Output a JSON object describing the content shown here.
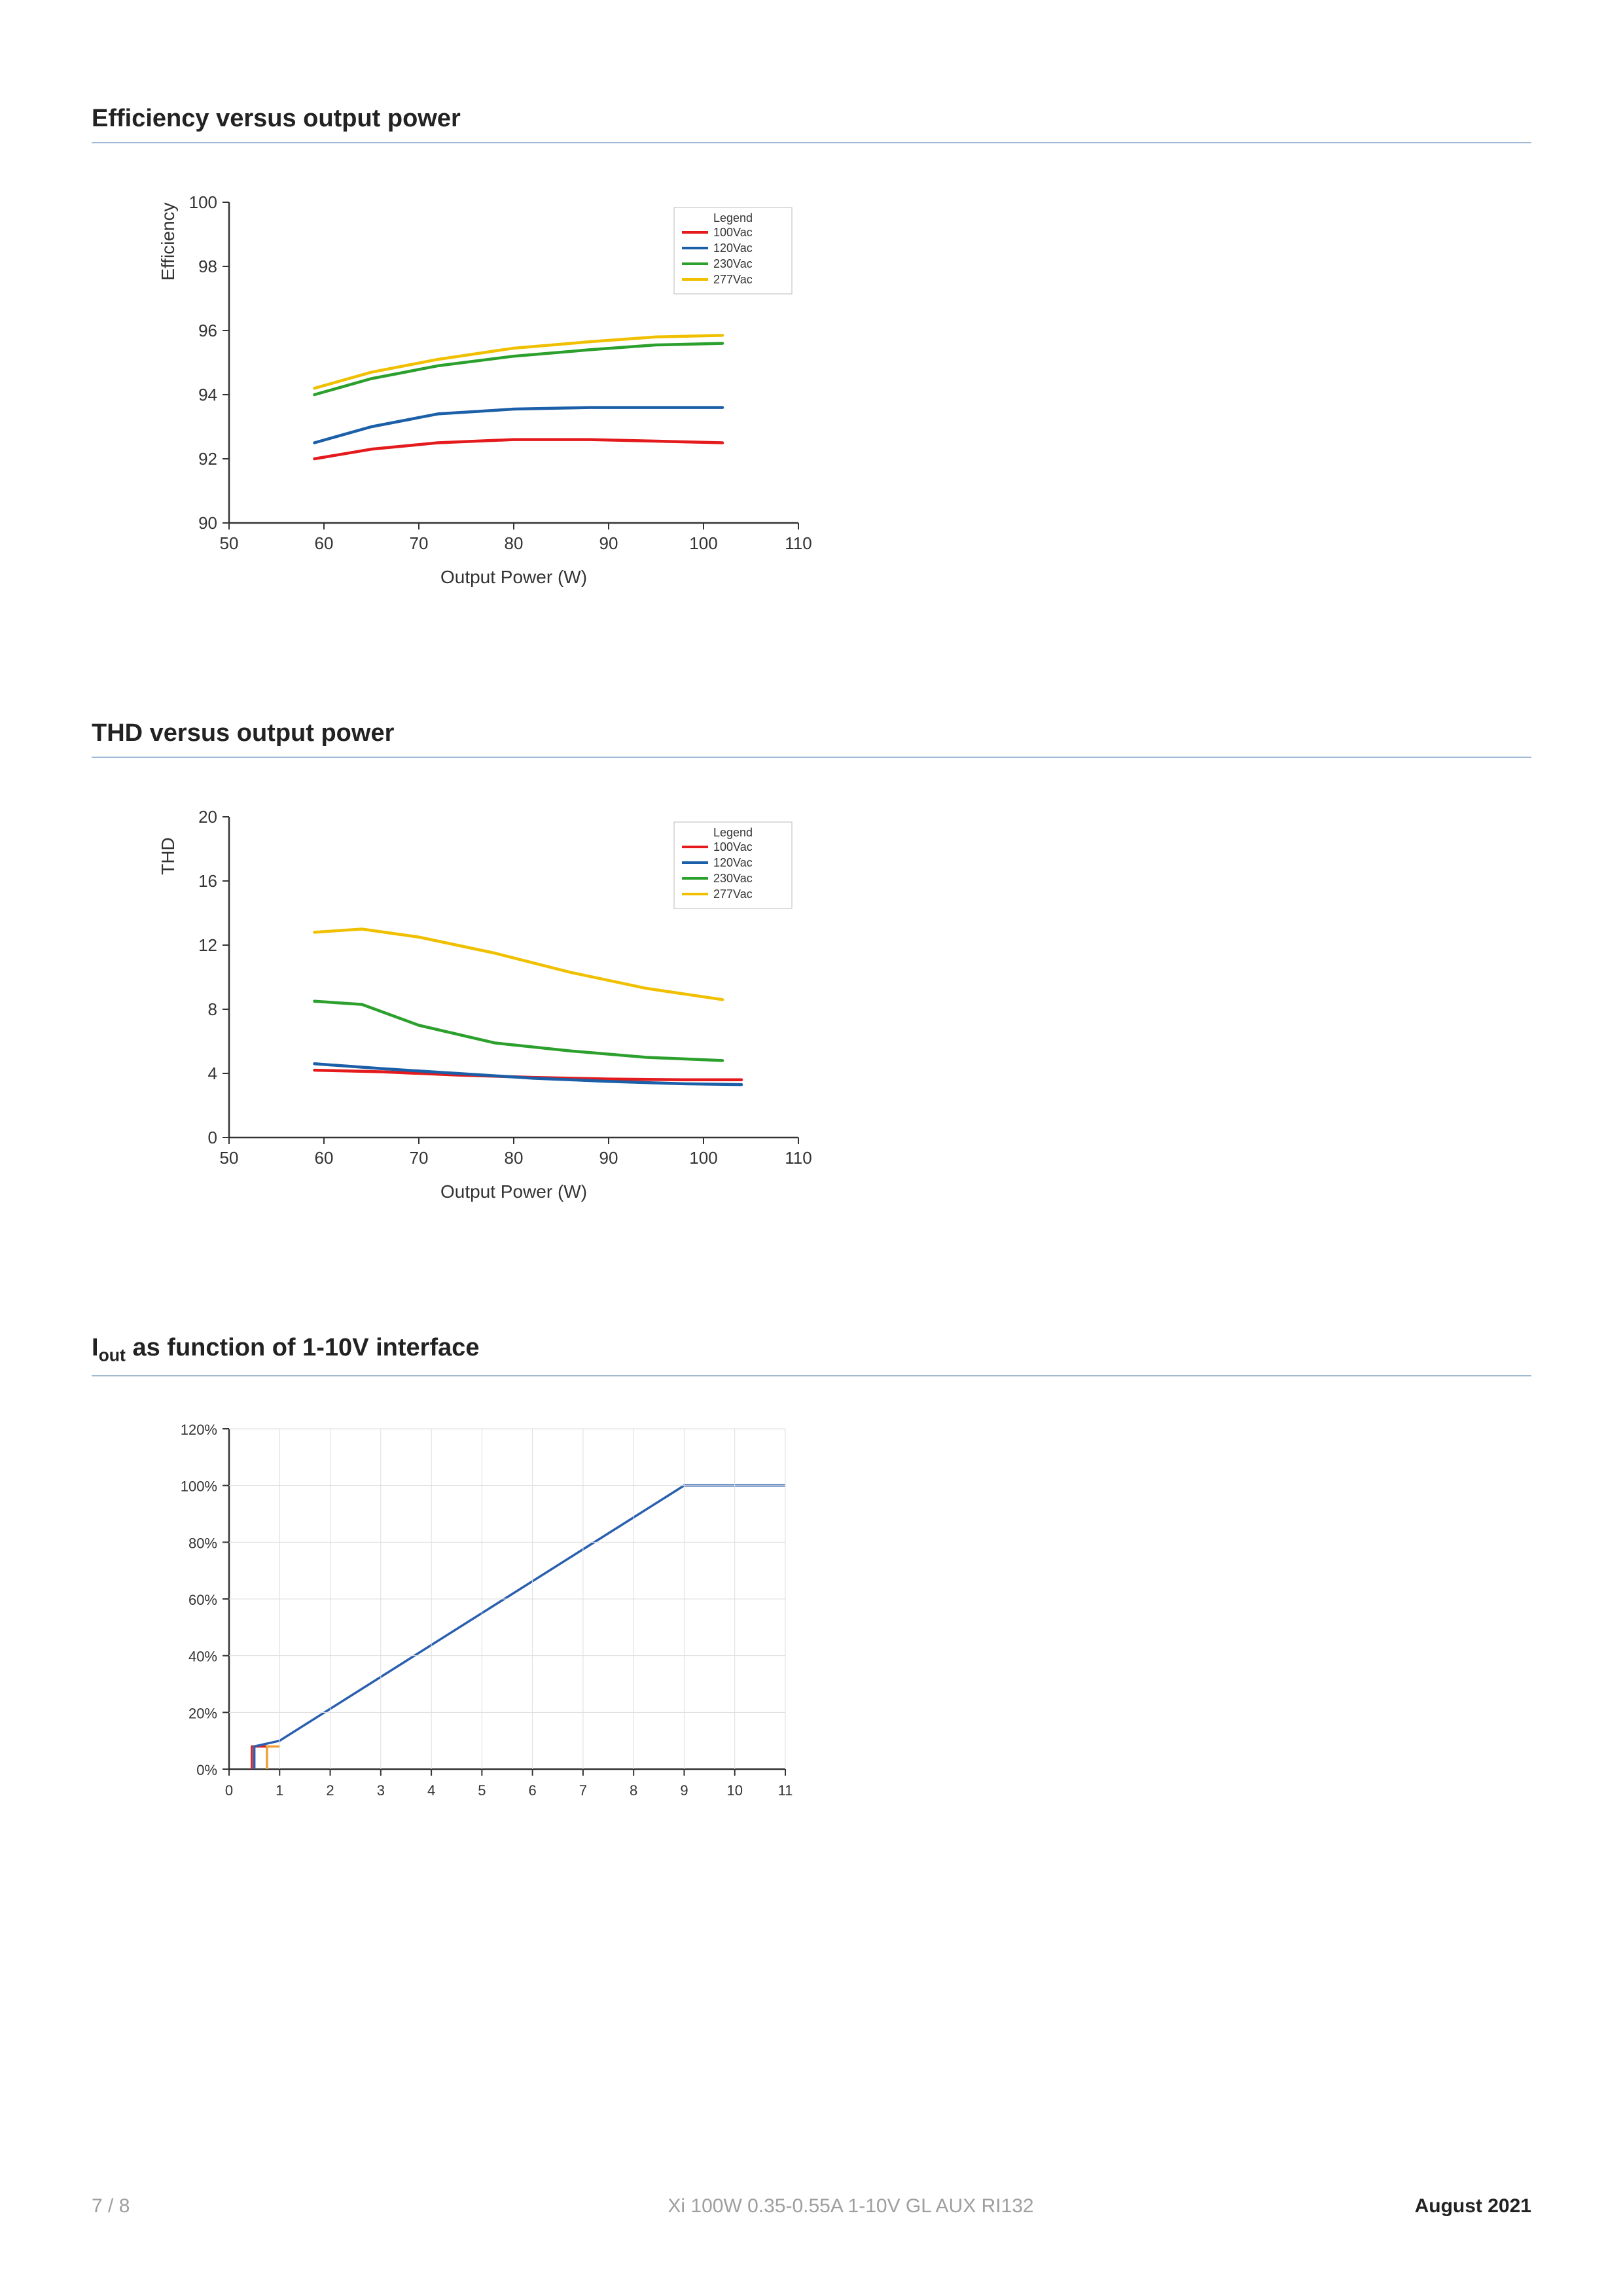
{
  "sections": [
    {
      "title": "Efficiency versus output power"
    },
    {
      "title": "THD versus output power"
    },
    {
      "title_html": "I<sub>out</sub> as function of 1-10V interface"
    }
  ],
  "footer": {
    "page": "7 / 8",
    "product": "Xi 100W 0.35-0.55A 1-10V GL AUX RI132",
    "date": "August 2021"
  },
  "colors": {
    "axis": "#333333",
    "grid": "#dddddd",
    "title_rule": "#9fbad3",
    "s100": "#e41a1c",
    "s120": "#1b5fa8",
    "s230": "#2ca02c",
    "s277": "#f0c000",
    "iout": "#2a5fb0",
    "iout_step_red": "#d62728",
    "iout_step_orange": "#f0a030"
  },
  "chart1": {
    "ylabel": "Efficiency",
    "xlabel": "Output Power (W)",
    "xlim": [
      50,
      110
    ],
    "ylim": [
      90,
      100
    ],
    "xticks": [
      50,
      60,
      70,
      80,
      90,
      100,
      110
    ],
    "yticks": [
      90,
      92,
      94,
      96,
      98,
      100
    ],
    "legend_title": "Legend",
    "legend": [
      {
        "label": "100Vac",
        "color": "s100"
      },
      {
        "label": "120Vac",
        "color": "s120"
      },
      {
        "label": "230Vac",
        "color": "s230"
      },
      {
        "label": "277Vac",
        "color": "s277"
      }
    ],
    "series": {
      "s100": [
        [
          59,
          92.0
        ],
        [
          65,
          92.3
        ],
        [
          72,
          92.5
        ],
        [
          80,
          92.6
        ],
        [
          88,
          92.6
        ],
        [
          95,
          92.55
        ],
        [
          102,
          92.5
        ]
      ],
      "s120": [
        [
          59,
          92.5
        ],
        [
          65,
          93.0
        ],
        [
          72,
          93.4
        ],
        [
          80,
          93.55
        ],
        [
          88,
          93.6
        ],
        [
          95,
          93.6
        ],
        [
          102,
          93.6
        ]
      ],
      "s230": [
        [
          59,
          94.0
        ],
        [
          65,
          94.5
        ],
        [
          72,
          94.9
        ],
        [
          80,
          95.2
        ],
        [
          88,
          95.4
        ],
        [
          95,
          95.55
        ],
        [
          102,
          95.6
        ]
      ],
      "s277": [
        [
          59,
          94.2
        ],
        [
          65,
          94.7
        ],
        [
          72,
          95.1
        ],
        [
          80,
          95.45
        ],
        [
          88,
          95.65
        ],
        [
          95,
          95.8
        ],
        [
          102,
          95.85
        ]
      ]
    }
  },
  "chart2": {
    "ylabel": "THD",
    "xlabel": "Output Power (W)",
    "xlim": [
      50,
      110
    ],
    "ylim": [
      0,
      20
    ],
    "xticks": [
      50,
      60,
      70,
      80,
      90,
      100,
      110
    ],
    "yticks": [
      0,
      4,
      8,
      12,
      16,
      20
    ],
    "legend_title": "Legend",
    "legend": [
      {
        "label": "100Vac",
        "color": "s100"
      },
      {
        "label": "120Vac",
        "color": "s120"
      },
      {
        "label": "230Vac",
        "color": "s230"
      },
      {
        "label": "277Vac",
        "color": "s277"
      }
    ],
    "series": {
      "s100": [
        [
          59,
          4.2
        ],
        [
          66,
          4.1
        ],
        [
          74,
          3.9
        ],
        [
          82,
          3.75
        ],
        [
          90,
          3.65
        ],
        [
          98,
          3.6
        ],
        [
          104,
          3.6
        ]
      ],
      "s120": [
        [
          59,
          4.6
        ],
        [
          66,
          4.3
        ],
        [
          74,
          4.0
        ],
        [
          82,
          3.7
        ],
        [
          90,
          3.5
        ],
        [
          98,
          3.35
        ],
        [
          104,
          3.3
        ]
      ],
      "s230": [
        [
          59,
          8.5
        ],
        [
          64,
          8.3
        ],
        [
          70,
          7.0
        ],
        [
          78,
          5.9
        ],
        [
          86,
          5.4
        ],
        [
          94,
          5.0
        ],
        [
          102,
          4.8
        ]
      ],
      "s277": [
        [
          59,
          12.8
        ],
        [
          64,
          13.0
        ],
        [
          70,
          12.5
        ],
        [
          78,
          11.5
        ],
        [
          86,
          10.3
        ],
        [
          94,
          9.3
        ],
        [
          102,
          8.6
        ]
      ]
    }
  },
  "chart3": {
    "xlim": [
      0,
      11
    ],
    "ylim": [
      0,
      120
    ],
    "xticks": [
      0,
      1,
      2,
      3,
      4,
      5,
      6,
      7,
      8,
      9,
      10,
      11
    ],
    "yticks": [
      0,
      20,
      40,
      60,
      80,
      100,
      120
    ],
    "ytick_labels": [
      "0%",
      "20%",
      "40%",
      "60%",
      "80%",
      "100%",
      "120%"
    ],
    "main": [
      [
        0.5,
        0
      ],
      [
        0.5,
        8
      ],
      [
        1,
        10
      ],
      [
        9,
        100
      ],
      [
        11,
        100
      ]
    ],
    "step_red": [
      [
        0.45,
        0
      ],
      [
        0.45,
        8
      ],
      [
        0.75,
        8
      ]
    ],
    "step_orange": [
      [
        0.75,
        0
      ],
      [
        0.75,
        8
      ],
      [
        1.0,
        8
      ]
    ]
  }
}
